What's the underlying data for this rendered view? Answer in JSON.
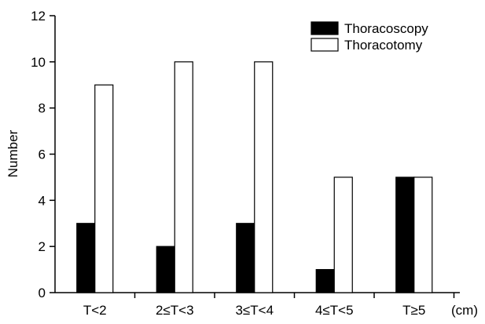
{
  "chart_data": {
    "type": "bar",
    "title": "",
    "xlabel": "",
    "x_unit": "(cm)",
    "ylabel": "Number",
    "ylim": [
      0,
      12
    ],
    "yticks": [
      0,
      2,
      4,
      6,
      8,
      10,
      12
    ],
    "categories": [
      "T<2",
      "2≤T<3",
      "3≤T<4",
      "4≤T<5",
      "T≥5"
    ],
    "series": [
      {
        "name": "Thoracoscopy",
        "values": [
          3,
          2,
          3,
          1,
          5
        ],
        "color": "#000000"
      },
      {
        "name": "Thoracotomy",
        "values": [
          9,
          10,
          10,
          5,
          5
        ],
        "color": "#ffffff"
      }
    ],
    "legend_position": "top-right",
    "grid": false
  }
}
